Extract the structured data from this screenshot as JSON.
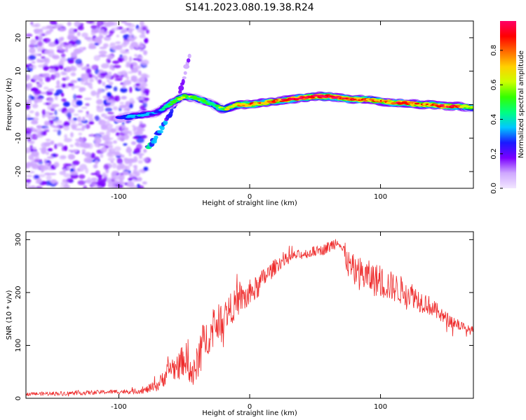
{
  "figure_title": "S141.2023.080.19.38.R24",
  "chart_data": [
    {
      "type": "heatmap",
      "panel": "top",
      "title": "S141.2023.080.19.38.R24",
      "xlabel": "Height of straight line (km)",
      "ylabel": "Frequency (Hz)",
      "xlim": [
        -171,
        171
      ],
      "ylim": [
        -25,
        25
      ],
      "xticks": [
        -100,
        0,
        100
      ],
      "yticks": [
        -20,
        -10,
        0,
        10,
        20
      ],
      "colorbar": {
        "label": "Normalized spectral amplitude",
        "range": [
          0,
          0.97
        ],
        "ticks": [
          "0.0",
          "0.2",
          "0.4",
          "0.6",
          "0.8"
        ],
        "colors": [
          "#f2e6ff",
          "#cfa8ff",
          "#7a00ff",
          "#1a1aff",
          "#00c8ff",
          "#00ff80",
          "#33ff00",
          "#ccff00",
          "#ffd000",
          "#ff6a00",
          "#ff0000",
          "#ff0066"
        ]
      },
      "ridge": {
        "x": [
          -100,
          -90,
          -80,
          -72,
          -65,
          -58,
          -50,
          -42,
          -35,
          -28,
          -20,
          -10,
          0,
          10,
          20,
          30,
          40,
          50,
          60,
          70,
          80,
          90,
          100,
          110,
          120,
          130,
          140,
          150,
          160,
          171
        ],
        "freq": [
          -4,
          -3.5,
          -3,
          -2.5,
          -1,
          1,
          2.5,
          2,
          1,
          0,
          -1.5,
          0,
          0,
          0.5,
          1,
          1.5,
          2,
          2.5,
          2.5,
          2,
          1.5,
          1.5,
          1,
          0.5,
          0.5,
          0,
          0,
          -0.5,
          -0.5,
          -1
        ],
        "amplitude": [
          0.25,
          0.35,
          0.35,
          0.3,
          0.4,
          0.5,
          0.55,
          0.55,
          0.5,
          0.45,
          0.55,
          0.7,
          0.8,
          0.75,
          0.8,
          0.85,
          0.95,
          0.97,
          0.95,
          0.9,
          0.85,
          0.8,
          0.75,
          0.8,
          0.85,
          0.75,
          0.8,
          0.85,
          0.8,
          0.5
        ]
      },
      "branch": {
        "x": [
          -78,
          -72,
          -66,
          -60,
          -55,
          -50,
          -46
        ],
        "freq": [
          -13,
          -10,
          -6,
          -2,
          2,
          8,
          15
        ],
        "amplitude": [
          0.4,
          0.35,
          0.3,
          0.25,
          0.2,
          0.15,
          0.12
        ]
      },
      "noise_region": {
        "x": [
          -171,
          -78
        ],
        "freq": [
          -25,
          25
        ],
        "amplitude": [
          0.05,
          0.25
        ]
      }
    },
    {
      "type": "line",
      "panel": "bottom",
      "xlabel": "Height of straight line (km)",
      "ylabel": "SNR (10 * v/v)",
      "xlim": [
        -171,
        171
      ],
      "ylim": [
        0,
        315
      ],
      "xticks": [
        -100,
        0,
        100
      ],
      "yticks": [
        0,
        100,
        200,
        300
      ],
      "color": "#ee2a2a",
      "series": [
        {
          "name": "SNR",
          "x": [
            -171,
            -150,
            -130,
            -110,
            -90,
            -80,
            -75,
            -70,
            -67,
            -64,
            -60,
            -56,
            -52,
            -48,
            -45,
            -42,
            -38,
            -35,
            -30,
            -26,
            -22,
            -18,
            -14,
            -10,
            -6,
            -2,
            2,
            6,
            10,
            14,
            18,
            22,
            26,
            30,
            35,
            40,
            45,
            50,
            55,
            60,
            63,
            66,
            68,
            70,
            73,
            76,
            80,
            85,
            90,
            95,
            100,
            105,
            110,
            115,
            120,
            125,
            130,
            135,
            140,
            145,
            150,
            155,
            160,
            165,
            171
          ],
          "y": [
            8,
            9,
            10,
            12,
            13,
            15,
            20,
            25,
            35,
            45,
            60,
            55,
            70,
            75,
            50,
            45,
            90,
            110,
            120,
            140,
            150,
            160,
            170,
            180,
            190,
            190,
            200,
            210,
            225,
            235,
            245,
            255,
            260,
            265,
            270,
            272,
            275,
            278,
            280,
            285,
            290,
            295,
            300,
            285,
            270,
            250,
            240,
            235,
            230,
            225,
            220,
            215,
            210,
            205,
            200,
            195,
            185,
            180,
            170,
            160,
            150,
            145,
            140,
            130,
            128
          ],
          "noise_amplitude": [
            4,
            5,
            5,
            5,
            6,
            8,
            12,
            15,
            20,
            25,
            30,
            30,
            35,
            40,
            40,
            40,
            45,
            45,
            40,
            40,
            40,
            38,
            38,
            35,
            35,
            35,
            30,
            30,
            25,
            22,
            20,
            18,
            15,
            15,
            12,
            12,
            12,
            12,
            12,
            15,
            15,
            15,
            12,
            20,
            30,
            35,
            40,
            40,
            40,
            40,
            40,
            38,
            35,
            35,
            32,
            30,
            28,
            25,
            22,
            20,
            18,
            16,
            14,
            12,
            10
          ]
        }
      ]
    }
  ]
}
